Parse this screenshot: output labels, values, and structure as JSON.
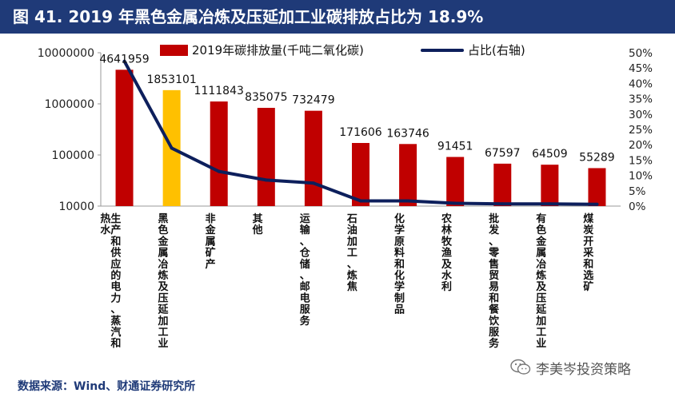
{
  "title": "图 41. 2019 年黑色金属冶炼及压延加工业碳排放占比为 18.9%",
  "source": "数据来源：Wind、财通证券研究所",
  "watermark": "李美岑投资策略",
  "colors": {
    "title_bg": "#1f3a78",
    "bar": "#c00000",
    "highlight_bar": "#ffc000",
    "line": "#0d1f5c"
  },
  "chart_data": {
    "type": "bar",
    "y_scale": "log",
    "ylim": [
      10000,
      10000000
    ],
    "y_ticks": [
      10000,
      100000,
      1000000,
      10000000
    ],
    "y_tick_labels": [
      "10000",
      "100000",
      "1000000",
      "10000000"
    ],
    "y2lim": [
      0,
      50
    ],
    "y2_ticks": [
      "0%",
      "5%",
      "10%",
      "15%",
      "20%",
      "25%",
      "30%",
      "35%",
      "40%",
      "45%",
      "50%"
    ],
    "categories": [
      "生产和供应的电力、蒸汽和热水",
      "黑色金属冶炼及压延加工业",
      "非金属矿产",
      "其他",
      "运输、仓储、邮电服务",
      "石油加工、炼焦",
      "化学原料和化学制品",
      "农林牧渔及水利",
      "批发、零售贸易和餐饮服务",
      "有色金属冶炼及压延加工业",
      "煤炭开采和选矿"
    ],
    "highlight_index": 1,
    "series": [
      {
        "name": "2019年碳排放量(千吨二氧化碳)",
        "kind": "bar",
        "axis": "left",
        "values": [
          4641959,
          1853101,
          1111843,
          835075,
          732479,
          171606,
          163746,
          91451,
          67597,
          64509,
          55289
        ],
        "labels": [
          "4641959",
          "1853101",
          "1111843",
          "835075",
          "732479",
          "171606",
          "163746",
          "91451",
          "67597",
          "64509",
          "55289"
        ]
      },
      {
        "name": "占比(右轴)",
        "kind": "line",
        "axis": "right",
        "values": [
          47.2,
          18.9,
          11.3,
          8.5,
          7.5,
          1.7,
          1.7,
          0.9,
          0.7,
          0.7,
          0.6
        ]
      }
    ]
  }
}
